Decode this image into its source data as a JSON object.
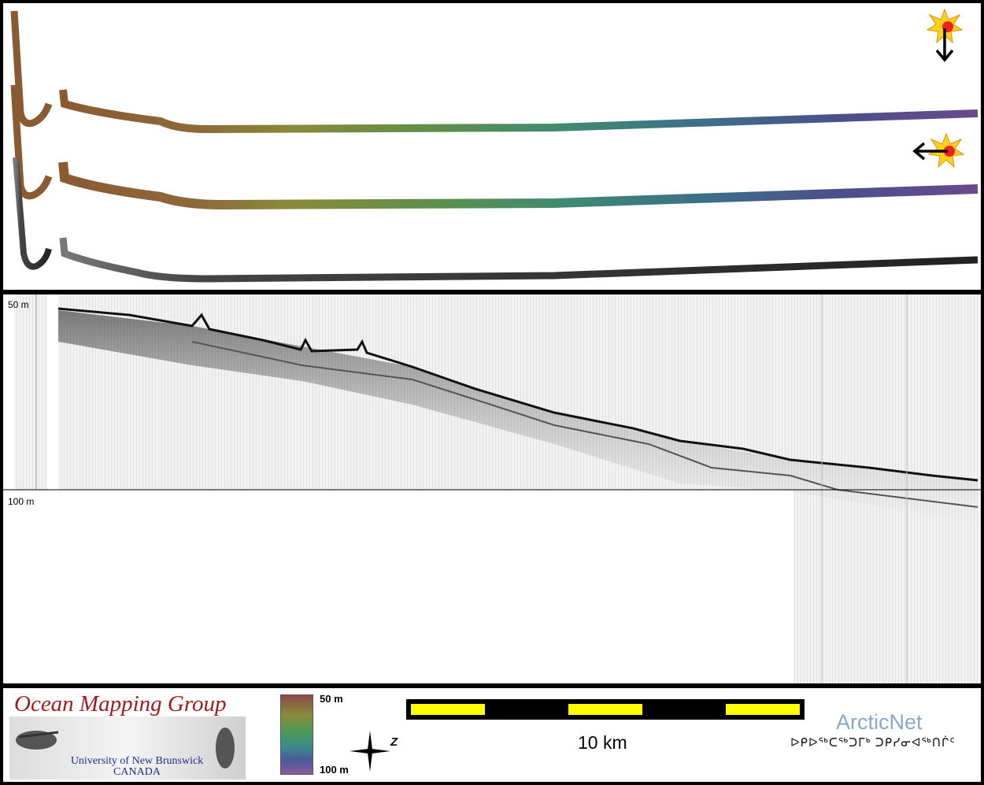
{
  "echogram": {
    "depth_top_label": "50 m",
    "depth_mid_label": "100 m"
  },
  "footer": {
    "org_title": "Ocean Mapping Group",
    "university": "University of New Brunswick",
    "country": "CANADA",
    "colorbar_top": "50 m",
    "colorbar_bottom": "100 m",
    "north_label": "Z",
    "scale_label": "10 km",
    "partner_name": "ArcticNet",
    "partner_syllabics": "ᐅᑭᐅᖅᑕᖅᑐᒥᒃ ᑐᑭᓯᓂᐊᖅᑎᒌᑦ"
  },
  "colors": {
    "org_title": "#a11c1c",
    "university_text": "#1f2f8a",
    "partner_name": "#86aacb",
    "scalebar_fill": "#ffff00",
    "sun": "#ffd21a"
  },
  "icons": {
    "sun_down": "sun-illumination-down-icon",
    "sun_left": "sun-illumination-left-icon",
    "north_arrow": "north-arrow-icon"
  }
}
